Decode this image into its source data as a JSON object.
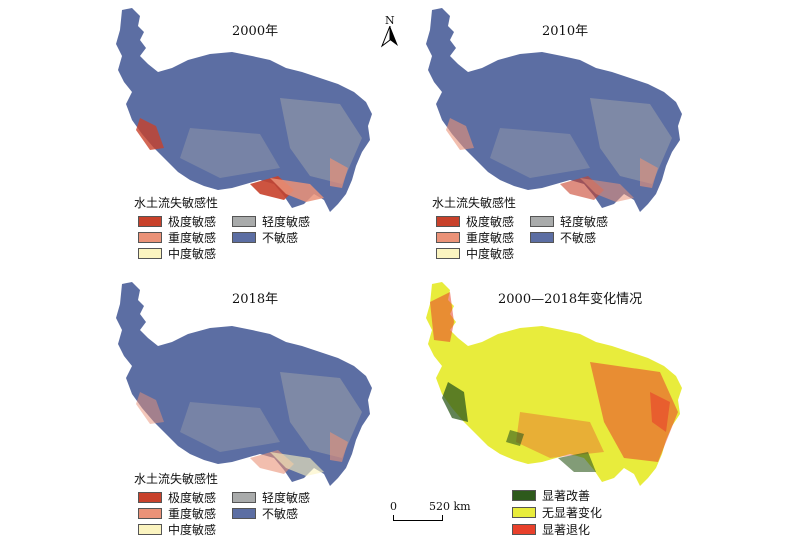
{
  "colors": {
    "extreme": "#c8412b",
    "heavy": "#ea9278",
    "moderate": "#fbf4c0",
    "light": "#a9abab",
    "insensitive": "#5c6ea3",
    "improve": "#2e5a1c",
    "no_change": "#e8ec3c",
    "degrade": "#e8402b"
  },
  "north_label": "N",
  "panels": {
    "p2000": {
      "title": "2000年"
    },
    "p2010": {
      "title": "2010年"
    },
    "p2018": {
      "title": "2018年"
    },
    "pchange": {
      "title": "2000—2018年变化情况"
    }
  },
  "legend": {
    "title": "水土流失敏感性",
    "extreme": "极度敏感",
    "heavy": "重度敏感",
    "moderate": "中度敏感",
    "light": "轻度敏感",
    "insensitive": "不敏感"
  },
  "change_legend": {
    "improve": "显著改善",
    "no_change": "无显著变化",
    "degrade": "显著退化"
  },
  "scale": {
    "zero": "0",
    "distance": "520 km"
  }
}
